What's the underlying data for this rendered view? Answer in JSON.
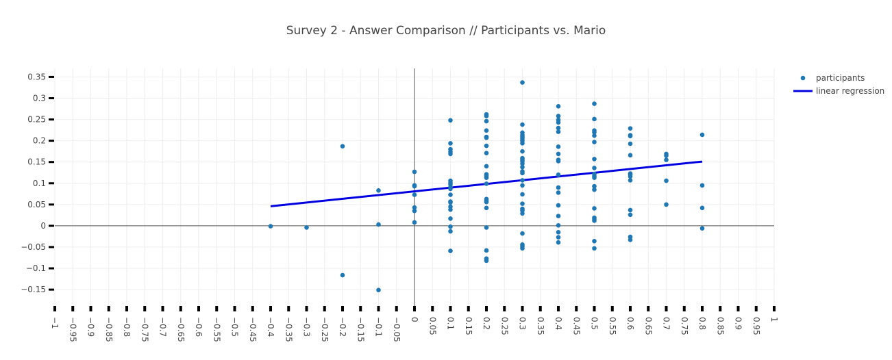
{
  "chart_data": {
    "type": "scatter",
    "title": "Survey 2 - Answer Comparison // Participants vs. Mario",
    "xlabel": "",
    "ylabel": "",
    "xlim": [
      -1,
      1
    ],
    "ylim": [
      -0.19,
      0.37
    ],
    "x_ticks": [
      -1,
      -0.95,
      -0.9,
      -0.85,
      -0.8,
      -0.75,
      -0.7,
      -0.65,
      -0.6,
      -0.55,
      -0.5,
      -0.45,
      -0.4,
      -0.35,
      -0.3,
      -0.25,
      -0.2,
      -0.15,
      -0.1,
      -0.05,
      0,
      0.05,
      0.1,
      0.15,
      0.2,
      0.25,
      0.3,
      0.35,
      0.4,
      0.45,
      0.5,
      0.55,
      0.6,
      0.65,
      0.7,
      0.75,
      0.8,
      0.85,
      0.9,
      0.95,
      1
    ],
    "x_tick_labels": [
      "−1",
      "−0.95",
      "−0.9",
      "−0.85",
      "−0.8",
      "−0.75",
      "−0.7",
      "−0.65",
      "−0.6",
      "−0.55",
      "−0.5",
      "−0.45",
      "−0.4",
      "−0.35",
      "−0.3",
      "−0.25",
      "−0.2",
      "−0.15",
      "−0.1",
      "−0.05",
      "0",
      "0.05",
      "0.1",
      "0.15",
      "0.2",
      "0.25",
      "0.3",
      "0.35",
      "0.4",
      "0.45",
      "0.5",
      "0.55",
      "0.6",
      "0.65",
      "0.7",
      "0.75",
      "0.8",
      "0.85",
      "0.9",
      "0.95",
      "1"
    ],
    "y_ticks": [
      0.35,
      0.3,
      0.25,
      0.2,
      0.15,
      0.1,
      0.05,
      0,
      -0.05,
      -0.1,
      -0.15
    ],
    "y_tick_labels": [
      "0.35",
      "0.3",
      "0.25",
      "0.2",
      "0.15",
      "0.1",
      "0.05",
      "0",
      "−0.05",
      "−0.1",
      "−0.15"
    ],
    "grid": true,
    "zero_lines": true,
    "legend_position": "top-right",
    "series": [
      {
        "name": "participants",
        "kind": "markers",
        "color": "#1f77b4",
        "points": [
          [
            -0.4,
            -0.001
          ],
          [
            -0.3,
            -0.004
          ],
          [
            -0.2,
            0.187
          ],
          [
            -0.2,
            -0.116
          ],
          [
            -0.1,
            0.083
          ],
          [
            -0.1,
            0.003
          ],
          [
            -0.1,
            -0.151
          ],
          [
            0,
            0.127
          ],
          [
            0,
            0.095
          ],
          [
            0,
            0.093
          ],
          [
            0,
            0.073
          ],
          [
            0,
            0.043
          ],
          [
            0,
            0.035
          ],
          [
            0,
            0.008
          ],
          [
            0.1,
            0.248
          ],
          [
            0.1,
            0.194
          ],
          [
            0.1,
            0.18
          ],
          [
            0.1,
            0.174
          ],
          [
            0.1,
            0.169
          ],
          [
            0.1,
            0.106
          ],
          [
            0.1,
            0.101
          ],
          [
            0.1,
            0.097
          ],
          [
            0.1,
            0.091
          ],
          [
            0.1,
            0.087
          ],
          [
            0.1,
            0.073
          ],
          [
            0.1,
            0.057
          ],
          [
            0.1,
            0.055
          ],
          [
            0.1,
            0.045
          ],
          [
            0.1,
            0.038
          ],
          [
            0.1,
            0.017
          ],
          [
            0.1,
            -0.002
          ],
          [
            0.1,
            -0.013
          ],
          [
            0.1,
            -0.059
          ],
          [
            0.2,
            0.262
          ],
          [
            0.2,
            0.258
          ],
          [
            0.2,
            0.246
          ],
          [
            0.2,
            0.224
          ],
          [
            0.2,
            0.209
          ],
          [
            0.2,
            0.207
          ],
          [
            0.2,
            0.188
          ],
          [
            0.2,
            0.171
          ],
          [
            0.2,
            0.14
          ],
          [
            0.2,
            0.121
          ],
          [
            0.2,
            0.117
          ],
          [
            0.2,
            0.113
          ],
          [
            0.2,
            0.099
          ],
          [
            0.2,
            0.063
          ],
          [
            0.2,
            0.059
          ],
          [
            0.2,
            0.056
          ],
          [
            0.2,
            0.042
          ],
          [
            0.2,
            -0.004
          ],
          [
            0.2,
            -0.058
          ],
          [
            0.2,
            -0.077
          ],
          [
            0.2,
            -0.082
          ],
          [
            0.3,
            0.337
          ],
          [
            0.3,
            0.238
          ],
          [
            0.3,
            0.219
          ],
          [
            0.3,
            0.213
          ],
          [
            0.3,
            0.209
          ],
          [
            0.3,
            0.205
          ],
          [
            0.3,
            0.2
          ],
          [
            0.3,
            0.194
          ],
          [
            0.3,
            0.175
          ],
          [
            0.3,
            0.159
          ],
          [
            0.3,
            0.155
          ],
          [
            0.3,
            0.152
          ],
          [
            0.3,
            0.146
          ],
          [
            0.3,
            0.138
          ],
          [
            0.3,
            0.128
          ],
          [
            0.3,
            0.124
          ],
          [
            0.3,
            0.107
          ],
          [
            0.3,
            0.095
          ],
          [
            0.3,
            0.074
          ],
          [
            0.3,
            0.052
          ],
          [
            0.3,
            0.04
          ],
          [
            0.3,
            0.036
          ],
          [
            0.3,
            0.029
          ],
          [
            0.3,
            -0.018
          ],
          [
            0.3,
            -0.044
          ],
          [
            0.3,
            -0.048
          ],
          [
            0.3,
            -0.053
          ],
          [
            0.4,
            0.281
          ],
          [
            0.4,
            0.258
          ],
          [
            0.4,
            0.249
          ],
          [
            0.4,
            0.243
          ],
          [
            0.4,
            0.23
          ],
          [
            0.4,
            0.221
          ],
          [
            0.4,
            0.186
          ],
          [
            0.4,
            0.169
          ],
          [
            0.4,
            0.155
          ],
          [
            0.4,
            0.152
          ],
          [
            0.4,
            0.12
          ],
          [
            0.4,
            0.09
          ],
          [
            0.4,
            0.078
          ],
          [
            0.4,
            0.048
          ],
          [
            0.4,
            0.023
          ],
          [
            0.4,
            0.001
          ],
          [
            0.4,
            -0.015
          ],
          [
            0.4,
            -0.027
          ],
          [
            0.4,
            -0.039
          ],
          [
            0.5,
            0.287
          ],
          [
            0.5,
            0.251
          ],
          [
            0.5,
            0.224
          ],
          [
            0.5,
            0.22
          ],
          [
            0.5,
            0.212
          ],
          [
            0.5,
            0.197
          ],
          [
            0.5,
            0.157
          ],
          [
            0.5,
            0.136
          ],
          [
            0.5,
            0.122
          ],
          [
            0.5,
            0.117
          ],
          [
            0.5,
            0.113
          ],
          [
            0.5,
            0.093
          ],
          [
            0.5,
            0.085
          ],
          [
            0.5,
            0.041
          ],
          [
            0.5,
            0.019
          ],
          [
            0.5,
            0.016
          ],
          [
            0.5,
            0.012
          ],
          [
            0.5,
            -0.036
          ],
          [
            0.5,
            -0.053
          ],
          [
            0.6,
            0.229
          ],
          [
            0.6,
            0.213
          ],
          [
            0.6,
            0.211
          ],
          [
            0.6,
            0.193
          ],
          [
            0.6,
            0.166
          ],
          [
            0.6,
            0.123
          ],
          [
            0.6,
            0.12
          ],
          [
            0.6,
            0.116
          ],
          [
            0.6,
            0.107
          ],
          [
            0.6,
            0.037
          ],
          [
            0.6,
            0.026
          ],
          [
            0.6,
            -0.026
          ],
          [
            0.6,
            -0.033
          ],
          [
            0.7,
            0.169
          ],
          [
            0.7,
            0.165
          ],
          [
            0.7,
            0.155
          ],
          [
            0.7,
            0.106
          ],
          [
            0.7,
            0.05
          ],
          [
            0.8,
            0.214
          ],
          [
            0.8,
            0.095
          ],
          [
            0.8,
            0.042
          ],
          [
            0.8,
            -0.006
          ]
        ]
      },
      {
        "name": "linear regression",
        "kind": "line",
        "color": "#0000e0",
        "x": [
          -0.4,
          0.8
        ],
        "y": [
          0.046,
          0.151
        ]
      }
    ]
  }
}
